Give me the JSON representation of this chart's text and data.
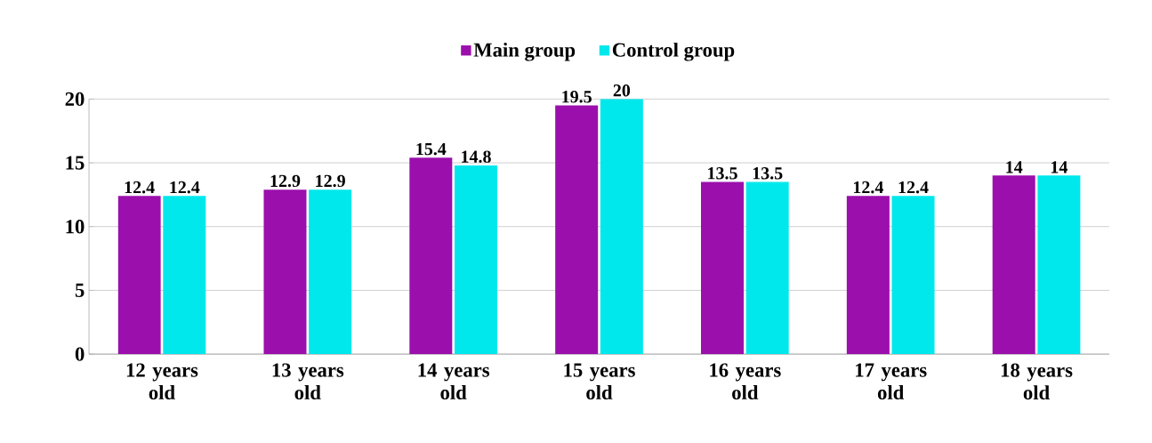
{
  "chart_data": {
    "type": "bar",
    "categories": [
      "12 years old",
      "13 years old",
      "14 years old",
      "15 years old",
      "16 years old",
      "17 years old",
      "18 years old"
    ],
    "series": [
      {
        "name": "Main group",
        "color": "#9b0fac",
        "values": [
          12.4,
          12.9,
          15.4,
          19.5,
          13.5,
          12.4,
          14
        ]
      },
      {
        "name": "Control group",
        "color": "#00e8ec",
        "values": [
          12.4,
          12.9,
          14.8,
          20,
          13.5,
          12.4,
          14
        ]
      }
    ],
    "ylim": [
      0,
      20
    ],
    "yticks": [
      0,
      5,
      10,
      15,
      20
    ],
    "grid": "y",
    "legend": "top",
    "data_labels": true
  }
}
